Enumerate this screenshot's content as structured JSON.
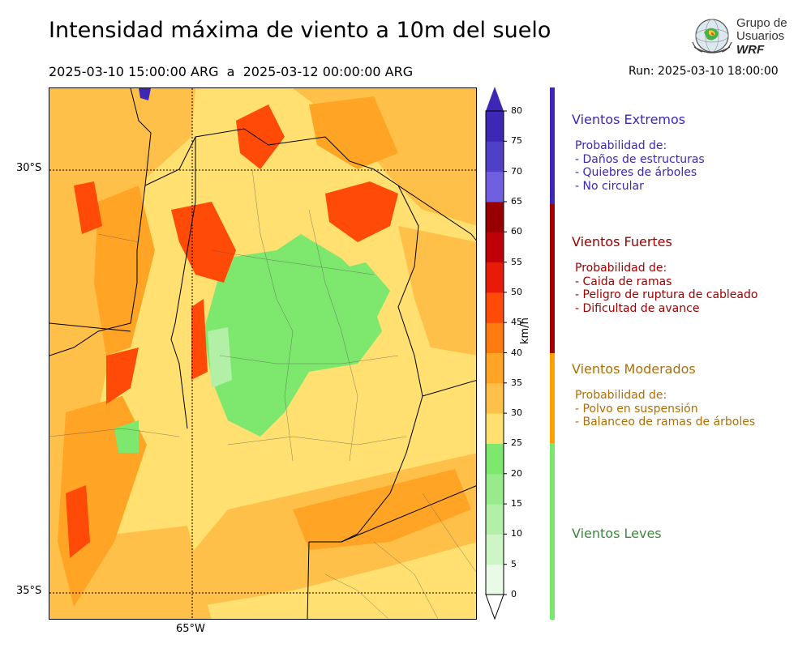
{
  "header": {
    "title": "Intensidad máxima de viento a 10m del suelo",
    "period": "2025-03-10 15:00:00 ARG  a  2025-03-12 00:00:00 ARG",
    "run": "Run: 2025-03-10 18:00:00"
  },
  "logo": {
    "line1": "Grupo de",
    "line2": "Usuarios",
    "line3": "WRF"
  },
  "map": {
    "lat_labels": [
      "30°S",
      "35°S"
    ],
    "lon_labels": [
      "65°W"
    ]
  },
  "colorbar": {
    "unit": "km/h",
    "ticks": [
      "0",
      "5",
      "10",
      "15",
      "20",
      "25",
      "30",
      "35",
      "40",
      "45",
      "50",
      "55",
      "60",
      "65",
      "70",
      "75",
      "80"
    ],
    "colors": [
      "#e9fbe6",
      "#cdf5c6",
      "#b2f0a8",
      "#97eb8b",
      "#7de86d",
      "#ffe070",
      "#ffc04a",
      "#ffa424",
      "#ff7a0f",
      "#ff4a08",
      "#e81a08",
      "#c00008",
      "#980000",
      "#7060e0",
      "#5040c8",
      "#3c28b4"
    ],
    "extend_max_color": "#3c28b4",
    "extend_min_color": "#ffffff"
  },
  "legend": {
    "categories": [
      {
        "title": "Vientos Extremos",
        "color": "#3c28b4",
        "lines": [
          "Probabilidad de:",
          "- Daños de estructuras",
          "- Quiebres de árboles",
          "- No circular"
        ]
      },
      {
        "title": "Vientos Fuertes",
        "color": "#a00000",
        "lines": [
          "Probabilidad de:",
          "- Caida de ramas",
          "- Peligro de ruptura de cableado",
          "- Dificultad de avance"
        ]
      },
      {
        "title": "Vientos Moderados",
        "color": "#b06e00",
        "bar_color": "#ffa000",
        "lines": [
          "Probabilidad de:",
          "- Polvo en suspensión",
          "- Balanceo de ramas de árboles"
        ]
      },
      {
        "title": "Vientos Leves",
        "color": "#3a8a3a",
        "bar_color": "#7ae86c",
        "lines": []
      }
    ]
  }
}
